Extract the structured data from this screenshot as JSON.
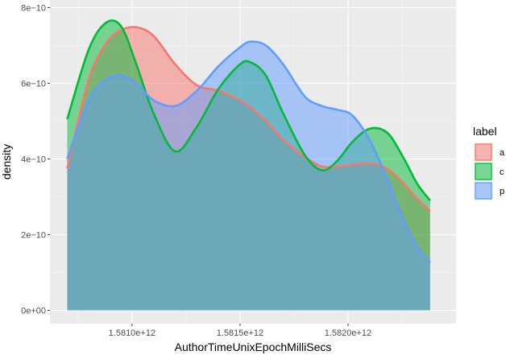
{
  "chart_data": {
    "type": "area",
    "title": "",
    "xlabel": "AuthorTimeUnixEpochMilliSecs",
    "ylabel": "density",
    "xlim": [
      1580620000000,
      1582500000000
    ],
    "ylim": [
      -3.5e-11,
      8.2e-10
    ],
    "x_ticks": [
      {
        "value": 1581000000000,
        "label": "1.5810e+12"
      },
      {
        "value": 1581500000000,
        "label": "1.5815e+12"
      },
      {
        "value": 1582000000000,
        "label": "1.5820e+12"
      }
    ],
    "y_ticks": [
      {
        "value": 0,
        "label": "0e+00"
      },
      {
        "value": 2e-10,
        "label": "2e−10"
      },
      {
        "value": 4e-10,
        "label": "4e−10"
      },
      {
        "value": 6e-10,
        "label": "6e−10"
      },
      {
        "value": 8e-10,
        "label": "8e−10"
      }
    ],
    "grid": true,
    "legend": {
      "title": "label",
      "position": "right"
    },
    "x": [
      1580700000000,
      1580800000000,
      1580880000000,
      1580950000000,
      1581020000000,
      1581100000000,
      1581200000000,
      1581300000000,
      1581400000000,
      1581500000000,
      1581550000000,
      1581620000000,
      1581700000000,
      1581800000000,
      1581880000000,
      1581950000000,
      1582020000000,
      1582100000000,
      1582180000000,
      1582250000000,
      1582320000000,
      1582380000000
    ],
    "series": [
      {
        "name": "a",
        "color": "#F8766D",
        "values": [
          3.75e-10,
          6.1e-10,
          7.05e-10,
          7.4e-10,
          7.48e-10,
          7.25e-10,
          6.5e-10,
          5.95e-10,
          5.8e-10,
          5.55e-10,
          5.35e-10,
          5e-10,
          4.5e-10,
          4.05e-10,
          3.8e-10,
          3.8e-10,
          3.85e-10,
          3.88e-10,
          3.75e-10,
          3.4e-10,
          2.95e-10,
          2.62e-10
        ]
      },
      {
        "name": "c",
        "color": "#00BA38",
        "values": [
          5.05e-10,
          6.9e-10,
          7.6e-10,
          7.5e-10,
          6.5e-10,
          5.2e-10,
          4.2e-10,
          4.85e-10,
          5.85e-10,
          6.5e-10,
          6.55e-10,
          6.2e-10,
          5.2e-10,
          4.1e-10,
          3.7e-10,
          3.95e-10,
          4.45e-10,
          4.8e-10,
          4.7e-10,
          4.1e-10,
          3.35e-10,
          2.9e-10
        ]
      },
      {
        "name": "p",
        "color": "#619CFF",
        "values": [
          4e-10,
          5.55e-10,
          6.1e-10,
          6.2e-10,
          6e-10,
          5.55e-10,
          5.4e-10,
          5.8e-10,
          6.45e-10,
          6.95e-10,
          7.1e-10,
          7e-10,
          6.5e-10,
          5.65e-10,
          5.4e-10,
          5.3e-10,
          5.15e-10,
          4.5e-10,
          3.5e-10,
          2.5e-10,
          1.7e-10,
          1.27e-10
        ]
      }
    ]
  }
}
